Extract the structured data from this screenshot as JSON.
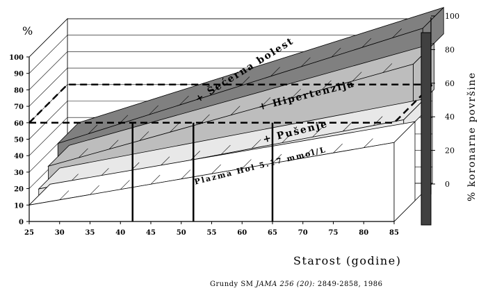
{
  "chart_data": {
    "type": "area",
    "title": "",
    "xlabel": "Starost (godine)",
    "ylabel_left": "%",
    "ylabel_right": "% koronarne površine",
    "x_ticks": [
      25,
      30,
      35,
      40,
      45,
      50,
      55,
      60,
      65,
      70,
      75,
      80,
      85
    ],
    "y_ticks_left": [
      0,
      10,
      20,
      30,
      40,
      50,
      60,
      70,
      80,
      90,
      100
    ],
    "y_ticks_right": [
      0,
      20,
      40,
      60,
      80,
      100
    ],
    "xlim": [
      25,
      85
    ],
    "ylim": [
      0,
      100
    ],
    "grid": true,
    "series": [
      {
        "name": "Plazma Hol 5.17 mmol/L",
        "color": "#ffffff",
        "x": [
          25,
          85
        ],
        "values": [
          10,
          48
        ]
      },
      {
        "name": "+ Pušenje",
        "color": "#e8e8e8",
        "x": [
          25,
          85
        ],
        "values": [
          14,
          56
        ]
      },
      {
        "name": "+ Hipertenzija",
        "color": "#bdbdbd",
        "x": [
          25,
          85
        ],
        "values": [
          22,
          84
        ]
      },
      {
        "name": "+ Šećerna bolest",
        "color": "#808080",
        "x": [
          25,
          85
        ],
        "values": [
          30,
          100
        ]
      }
    ],
    "reference_lines": {
      "threshold_percent": 60,
      "crossing_ages": [
        42,
        52,
        65
      ]
    },
    "citation": {
      "authors": "Grundy SM ",
      "journal": "JAMA 256 (20):",
      "pages": " 2849-2858, 1986"
    }
  }
}
